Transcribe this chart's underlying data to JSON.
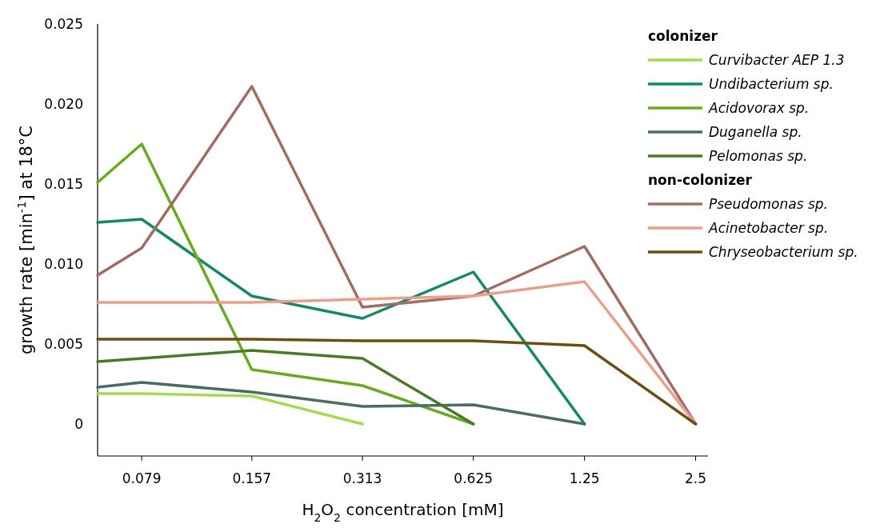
{
  "chart_data": {
    "type": "line",
    "xlabel": "H$_{2}$O$_{2}$ concentration [mM]",
    "ylabel": "growth rate [min$^{-1}$] at 18°C",
    "x": [
      0.06,
      0.079,
      0.157,
      0.313,
      0.625,
      1.25,
      2.5
    ],
    "log": "x",
    "xlim": [
      0.06,
      2.7
    ],
    "xticks": [
      0.079,
      0.157,
      0.313,
      0.625,
      1.25,
      2.5
    ],
    "ylim": [
      -0.002,
      0.025
    ],
    "yticks": [
      0,
      {
        "value": 0.005,
        "label": "0.005"
      },
      {
        "value": 0.01,
        "label": "0.010"
      },
      {
        "value": 0.015,
        "label": "0.015"
      },
      {
        "value": 0.02,
        "label": "0.020"
      },
      {
        "value": 0.025,
        "label": "0.025"
      }
    ],
    "grid": false,
    "legend": "top right",
    "marker": "none",
    "line_style": "solid",
    "annotations": [
      "colonizer",
      "non-colonizer"
    ],
    "series": [
      {
        "name": "Curvibacter AEP 1.3",
        "color": "#a6d854",
        "values": [
          0.0019,
          0.0019,
          0.00175,
          0,
          null,
          null,
          null
        ]
      },
      {
        "name": "Undibacterium sp.",
        "color": "#138a63",
        "values": [
          0.0126,
          0.0128,
          0.008,
          0.0066,
          0.0095,
          0,
          null
        ]
      },
      {
        "name": "Acidovorax sp.",
        "color": "#6aaa1f",
        "values": [
          0.0151,
          0.0175,
          0.0034,
          0.0024,
          0,
          null,
          null
        ]
      },
      {
        "name": "Duganella sp.",
        "color": "#4a6b66",
        "values": [
          0.0023,
          0.0026,
          0.002,
          0.0011,
          0.0012,
          0,
          null
        ]
      },
      {
        "name": "Pelomonas sp.",
        "color": "#4a7a26",
        "values": [
          0.0039,
          0.0041,
          0.0046,
          0.0041,
          0,
          null,
          null
        ]
      },
      {
        "name": "Pseudomonas sp.",
        "color": "#a06d62",
        "values": [
          0.0093,
          0.011,
          0.0211,
          0.0073,
          0.008,
          0.0111,
          0
        ]
      },
      {
        "name": "Acinetobacter sp.",
        "color": "#e8a08a",
        "values": [
          0.0076,
          0.0076,
          0.0076,
          0.0078,
          0.008,
          0.0089,
          0
        ]
      },
      {
        "name": "Chryseobacterium sp.",
        "color": "#6b4f12",
        "values": [
          0.0053,
          0.0053,
          0.0053,
          0.0052,
          0.0052,
          0.0049,
          0
        ]
      }
    ]
  }
}
